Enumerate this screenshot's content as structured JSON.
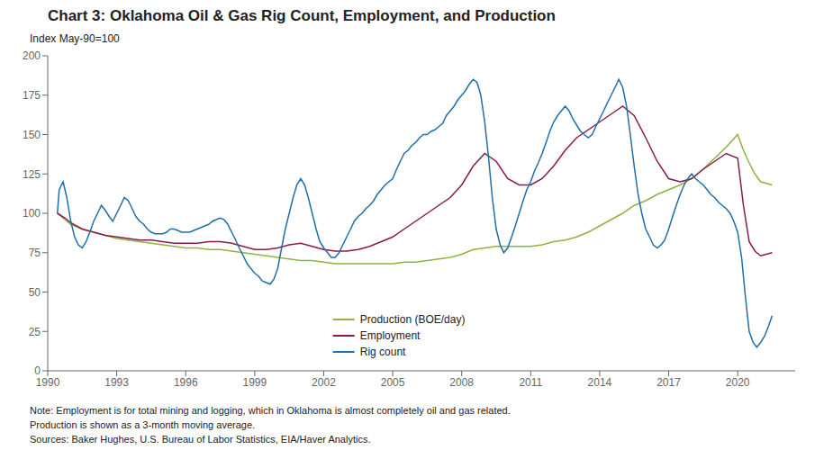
{
  "chart_data": {
    "type": "line",
    "title": "Chart 3: Oklahoma Oil & Gas Rig Count, Employment, and Production",
    "ylabel": "Index May-90=100",
    "annotations": [
      "Note: Employment is for total mining and logging, which in Oklahoma is almost completely oil and gas related.",
      "Production is shown as a 3-month moving average.",
      "Sources: Baker Hughes, U.S. Bureau of Labor Statistics, EIA/Haver Analytics."
    ],
    "xlim": [
      1990,
      2022.5
    ],
    "xticks": [
      1990,
      1993,
      1996,
      1999,
      2002,
      2005,
      2008,
      2011,
      2014,
      2017,
      2020
    ],
    "ylim": [
      0,
      200
    ],
    "yticks": [
      0,
      25,
      50,
      75,
      100,
      125,
      150,
      175,
      200
    ],
    "grid": false,
    "legend": "lower center",
    "series": [
      {
        "name": "Production (BOE/day)",
        "color": "#8db53d",
        "x": [
          1990.42,
          1990.75,
          1991,
          1991.5,
          1992,
          1992.5,
          1993,
          1993.5,
          1994,
          1994.5,
          1995,
          1995.5,
          1996,
          1996.5,
          1997,
          1997.5,
          1998,
          1998.5,
          1999,
          1999.5,
          2000,
          2000.5,
          2001,
          2001.5,
          2002,
          2002.5,
          2003,
          2003.5,
          2004,
          2004.5,
          2005,
          2005.5,
          2006,
          2006.5,
          2007,
          2007.5,
          2008,
          2008.5,
          2009,
          2009.5,
          2010,
          2010.5,
          2011,
          2011.5,
          2012,
          2012.5,
          2013,
          2013.5,
          2014,
          2014.5,
          2015,
          2015.5,
          2016,
          2016.5,
          2017,
          2017.5,
          2018,
          2018.5,
          2019,
          2019.5,
          2020,
          2020.25,
          2020.5,
          2020.75,
          2021,
          2021.5
        ],
        "values": [
          100,
          96,
          93,
          90,
          88,
          86,
          84,
          83,
          82,
          81,
          80,
          79,
          78,
          78,
          77,
          77,
          76,
          75,
          74,
          73,
          72,
          71,
          70,
          70,
          69,
          68,
          68,
          68,
          68,
          68,
          68,
          69,
          69,
          70,
          71,
          72,
          74,
          77,
          78,
          79,
          79,
          79,
          79,
          80,
          82,
          83,
          85,
          88,
          92,
          96,
          100,
          105,
          108,
          112,
          115,
          118,
          122,
          128,
          135,
          142,
          150,
          140,
          132,
          125,
          120,
          118
        ]
      },
      {
        "name": "Employment",
        "color": "#8b1a4a",
        "x": [
          1990.42,
          1990.75,
          1991,
          1991.5,
          1992,
          1992.5,
          1993,
          1993.5,
          1994,
          1994.5,
          1995,
          1995.5,
          1996,
          1996.5,
          1997,
          1997.5,
          1998,
          1998.5,
          1999,
          1999.5,
          2000,
          2000.5,
          2001,
          2001.5,
          2002,
          2002.5,
          2003,
          2003.5,
          2004,
          2004.5,
          2005,
          2005.5,
          2006,
          2006.5,
          2007,
          2007.5,
          2008,
          2008.5,
          2009,
          2009.5,
          2010,
          2010.5,
          2011,
          2011.5,
          2012,
          2012.5,
          2013,
          2013.5,
          2014,
          2014.5,
          2015,
          2015.5,
          2016,
          2016.5,
          2017,
          2017.5,
          2018,
          2018.5,
          2019,
          2019.5,
          2020,
          2020.25,
          2020.5,
          2020.75,
          2021,
          2021.5
        ],
        "values": [
          100,
          97,
          94,
          90,
          88,
          86,
          85,
          84,
          83,
          83,
          82,
          81,
          81,
          81,
          82,
          82,
          81,
          79,
          77,
          77,
          78,
          80,
          81,
          79,
          77,
          76,
          76,
          77,
          79,
          82,
          85,
          90,
          95,
          100,
          105,
          110,
          118,
          130,
          138,
          133,
          122,
          118,
          118,
          122,
          130,
          140,
          148,
          153,
          158,
          163,
          168,
          162,
          148,
          133,
          122,
          120,
          122,
          128,
          133,
          138,
          135,
          105,
          82,
          76,
          73,
          75
        ]
      },
      {
        "name": "Rig count",
        "color": "#1f6fa8",
        "x": [
          1990.42,
          1990.5,
          1990.67,
          1990.83,
          1991,
          1991.17,
          1991.33,
          1991.5,
          1991.67,
          1991.83,
          1992,
          1992.17,
          1992.33,
          1992.5,
          1992.67,
          1992.83,
          1993,
          1993.17,
          1993.33,
          1993.5,
          1993.67,
          1993.83,
          1994,
          1994.17,
          1994.33,
          1994.5,
          1994.67,
          1994.83,
          1995,
          1995.17,
          1995.33,
          1995.5,
          1995.67,
          1995.83,
          1996,
          1996.17,
          1996.33,
          1996.5,
          1996.67,
          1996.83,
          1997,
          1997.17,
          1997.33,
          1997.5,
          1997.67,
          1997.83,
          1998,
          1998.17,
          1998.33,
          1998.5,
          1998.67,
          1998.83,
          1999,
          1999.17,
          1999.33,
          1999.5,
          1999.67,
          1999.83,
          2000,
          2000.17,
          2000.33,
          2000.5,
          2000.67,
          2000.83,
          2001,
          2001.17,
          2001.33,
          2001.5,
          2001.67,
          2001.83,
          2002,
          2002.17,
          2002.33,
          2002.5,
          2002.67,
          2002.83,
          2003,
          2003.17,
          2003.33,
          2003.5,
          2003.67,
          2003.83,
          2004,
          2004.17,
          2004.33,
          2004.5,
          2004.67,
          2004.83,
          2005,
          2005.17,
          2005.33,
          2005.5,
          2005.67,
          2005.83,
          2006,
          2006.17,
          2006.33,
          2006.5,
          2006.67,
          2006.83,
          2007,
          2007.17,
          2007.33,
          2007.5,
          2007.67,
          2007.83,
          2008,
          2008.17,
          2008.33,
          2008.5,
          2008.67,
          2008.83,
          2009,
          2009.17,
          2009.33,
          2009.5,
          2009.67,
          2009.83,
          2010,
          2010.17,
          2010.33,
          2010.5,
          2010.67,
          2010.83,
          2011,
          2011.17,
          2011.33,
          2011.5,
          2011.67,
          2011.83,
          2012,
          2012.17,
          2012.33,
          2012.5,
          2012.67,
          2012.83,
          2013,
          2013.17,
          2013.33,
          2013.5,
          2013.67,
          2013.83,
          2014,
          2014.17,
          2014.33,
          2014.5,
          2014.67,
          2014.83,
          2015,
          2015.17,
          2015.33,
          2015.5,
          2015.67,
          2015.83,
          2016,
          2016.17,
          2016.33,
          2016.5,
          2016.67,
          2016.83,
          2017,
          2017.17,
          2017.33,
          2017.5,
          2017.67,
          2017.83,
          2018,
          2018.17,
          2018.33,
          2018.5,
          2018.67,
          2018.83,
          2019,
          2019.17,
          2019.33,
          2019.5,
          2019.67,
          2019.83,
          2020,
          2020.17,
          2020.33,
          2020.5,
          2020.67,
          2020.83,
          2021,
          2021.17,
          2021.33,
          2021.5
        ],
        "values": [
          100,
          115,
          120,
          110,
          95,
          85,
          80,
          78,
          82,
          88,
          95,
          100,
          105,
          102,
          98,
          95,
          100,
          105,
          110,
          108,
          103,
          98,
          95,
          93,
          90,
          88,
          87,
          87,
          87,
          88,
          90,
          90,
          89,
          88,
          88,
          88,
          89,
          90,
          91,
          92,
          93,
          95,
          96,
          97,
          96,
          93,
          88,
          83,
          78,
          73,
          68,
          65,
          62,
          60,
          57,
          56,
          55,
          58,
          65,
          78,
          90,
          100,
          110,
          118,
          122,
          118,
          110,
          100,
          90,
          82,
          78,
          75,
          72,
          72,
          75,
          80,
          85,
          90,
          95,
          98,
          100,
          103,
          105,
          108,
          112,
          115,
          118,
          120,
          122,
          128,
          133,
          138,
          140,
          143,
          145,
          148,
          150,
          150,
          152,
          153,
          155,
          157,
          162,
          165,
          168,
          172,
          175,
          178,
          182,
          185,
          183,
          175,
          158,
          135,
          110,
          90,
          80,
          75,
          78,
          85,
          92,
          100,
          108,
          115,
          120,
          127,
          132,
          138,
          145,
          152,
          158,
          162,
          165,
          168,
          165,
          160,
          156,
          152,
          150,
          148,
          150,
          155,
          160,
          165,
          170,
          175,
          180,
          185,
          180,
          168,
          150,
          130,
          112,
          100,
          90,
          85,
          80,
          78,
          80,
          83,
          90,
          98,
          105,
          112,
          118,
          122,
          125,
          122,
          120,
          118,
          115,
          112,
          110,
          107,
          105,
          103,
          100,
          95,
          88,
          72,
          48,
          25,
          18,
          15,
          18,
          22,
          28,
          35
        ]
      }
    ]
  }
}
